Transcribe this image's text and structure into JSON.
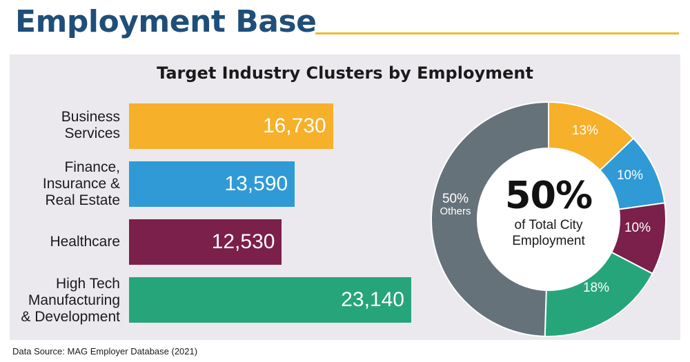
{
  "header": {
    "title": "Employment Base",
    "rule_color": "#f2b731",
    "title_color": "#1f4e79"
  },
  "chart_data": [
    {
      "type": "bar",
      "orientation": "horizontal",
      "title": "Target Industry Clusters by Employment",
      "categories": [
        [
          "Business",
          "Services"
        ],
        [
          "Finance,",
          "Insurance &",
          "Real Estate"
        ],
        [
          "Healthcare"
        ],
        [
          "High Tech",
          "Manufacturing",
          "& Development"
        ]
      ],
      "values": [
        16730,
        13590,
        12530,
        23140
      ],
      "value_labels": [
        "16,730",
        "13,590",
        "12,530",
        "23,140"
      ],
      "colors": [
        "#f7b02a",
        "#2f9ad6",
        "#7b1f4b",
        "#27a57a"
      ],
      "xlim": [
        0,
        23140
      ]
    },
    {
      "type": "pie",
      "style": "donut",
      "slices": [
        {
          "name": "Business Services",
          "value": 13,
          "label": "13%",
          "color": "#f7b02a"
        },
        {
          "name": "Finance, Insurance & Real Estate",
          "value": 10,
          "label": "10%",
          "color": "#2f9ad6"
        },
        {
          "name": "Healthcare",
          "value": 10,
          "label": "10%",
          "color": "#7b1f4b"
        },
        {
          "name": "High Tech Manufacturing & Development",
          "value": 18,
          "label": "18%",
          "color": "#27a57a"
        },
        {
          "name": "Others",
          "value": 50,
          "label": "50%",
          "sublabel": "Others",
          "color": "#66727a"
        }
      ],
      "center_value": "50%",
      "center_text": "of Total City Employment"
    }
  ],
  "footer": {
    "source": "Data Source: MAG Employer Database (2021)"
  }
}
